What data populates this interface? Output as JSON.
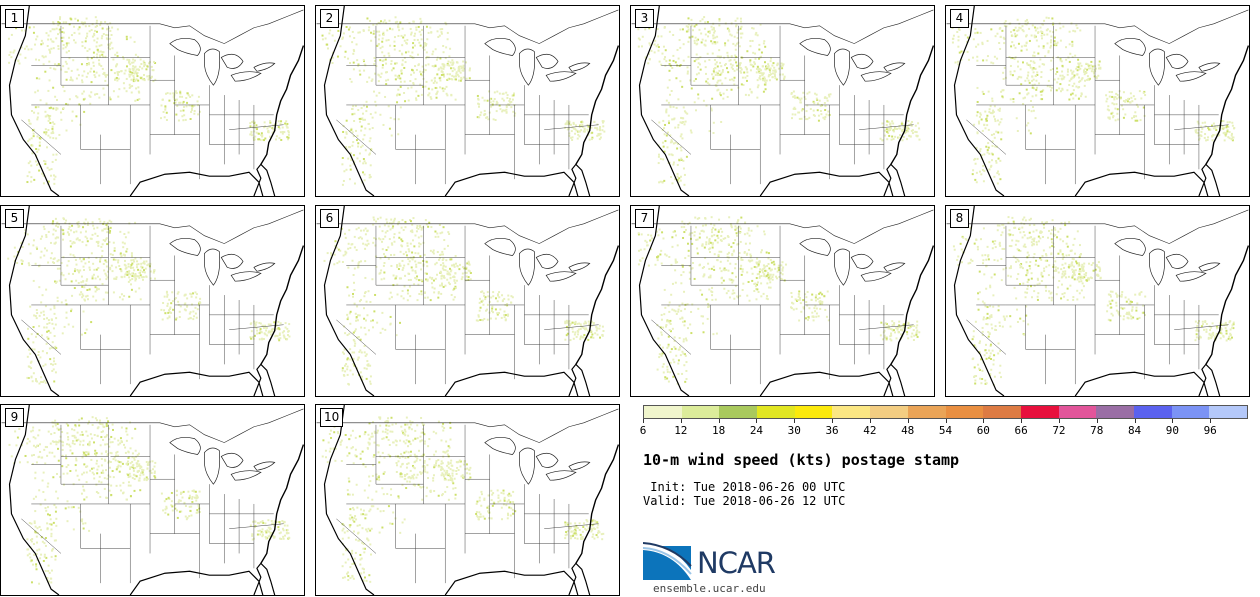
{
  "panels": [
    {
      "label": "1"
    },
    {
      "label": "2"
    },
    {
      "label": "3"
    },
    {
      "label": "4"
    },
    {
      "label": "5"
    },
    {
      "label": "6"
    },
    {
      "label": "7"
    },
    {
      "label": "8"
    },
    {
      "label": "9"
    },
    {
      "label": "10"
    }
  ],
  "colorbar": {
    "ticks": [
      "6",
      "12",
      "18",
      "24",
      "30",
      "36",
      "42",
      "48",
      "54",
      "60",
      "66",
      "72",
      "78",
      "84",
      "90",
      "96"
    ],
    "colors": [
      "#f0f5cc",
      "#dcec9a",
      "#a9c95d",
      "#e1e622",
      "#fbe90c",
      "#fbe783",
      "#f3cd82",
      "#eaa457",
      "#e98f41",
      "#dd7b43",
      "#e8103d",
      "#e2559a",
      "#9a6ea5",
      "#5b62ef",
      "#7b93f5",
      "#b4c8f9"
    ]
  },
  "title": "10-m wind speed (kts) postage stamp",
  "init": " Init: Tue 2018-06-26 00 UTC",
  "valid": "Valid: Tue 2018-06-26 12 UTC",
  "logo": {
    "name": "NCAR",
    "url": "ensemble.ucar.edu"
  }
}
